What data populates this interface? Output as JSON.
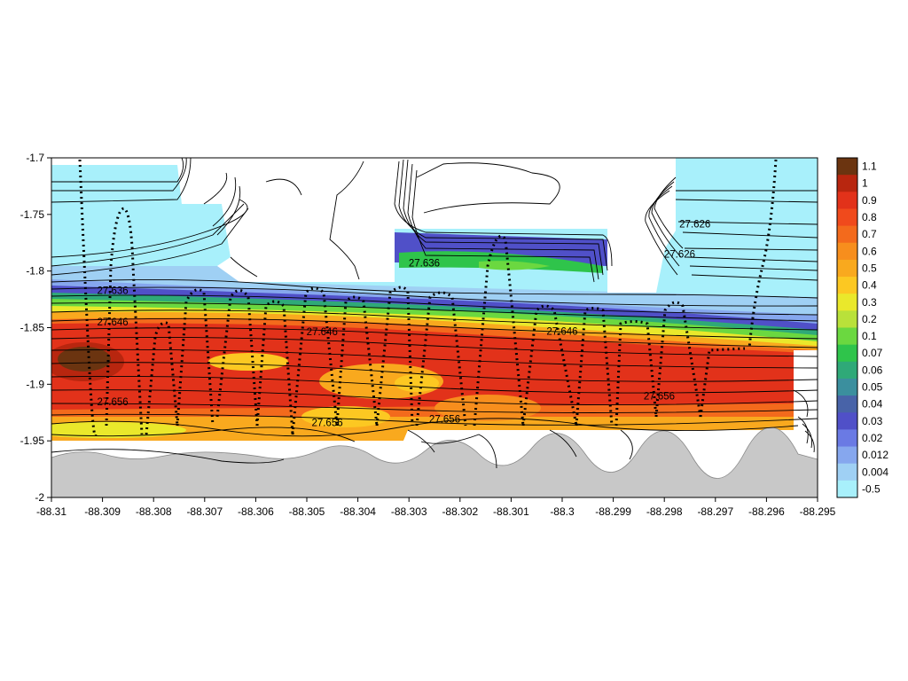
{
  "chart_data": {
    "type": "heatmap",
    "xlim": [
      -88.31,
      -88.295
    ],
    "ylim": [
      -2.0,
      -1.7
    ],
    "x_ticks": [
      "-88.31",
      "-88.309",
      "-88.308",
      "-88.307",
      "-88.306",
      "-88.305",
      "-88.304",
      "-88.303",
      "-88.302",
      "-88.301",
      "-88.3",
      "-88.299",
      "-88.298",
      "-88.297",
      "-88.296",
      "-88.295"
    ],
    "y_ticks": [
      "-1.7",
      "-1.75",
      "-1.8",
      "-1.85",
      "-1.9",
      "-1.95",
      "-2"
    ],
    "legend_position": "right",
    "colorbar": [
      {
        "label": "1.1",
        "color": "#6b3410"
      },
      {
        "label": "1",
        "color": "#b8260f"
      },
      {
        "label": "0.9",
        "color": "#e2321a"
      },
      {
        "label": "0.8",
        "color": "#f04a1c"
      },
      {
        "label": "0.7",
        "color": "#f36a1c"
      },
      {
        "label": "0.6",
        "color": "#f78e1d"
      },
      {
        "label": "0.5",
        "color": "#f9a91e"
      },
      {
        "label": "0.4",
        "color": "#fcc822"
      },
      {
        "label": "0.3",
        "color": "#eae82b"
      },
      {
        "label": "0.2",
        "color": "#b9e13a"
      },
      {
        "label": "0.1",
        "color": "#6bd840"
      },
      {
        "label": "0.07",
        "color": "#2fc44b"
      },
      {
        "label": "0.06",
        "color": "#2fa978"
      },
      {
        "label": "0.05",
        "color": "#3b8f9e"
      },
      {
        "label": "0.04",
        "color": "#4863a8"
      },
      {
        "label": "0.03",
        "color": "#5050c8"
      },
      {
        "label": "0.02",
        "color": "#6a7ae4"
      },
      {
        "label": "0.012",
        "color": "#86a7ee"
      },
      {
        "label": "0.004",
        "color": "#9fd0f4"
      },
      {
        "label": "-0.5",
        "color": "#a8f0fb"
      }
    ],
    "contour_labels": [
      {
        "text": "27.626",
        "x": -88.2974,
        "y": -1.7585
      },
      {
        "text": "27.626",
        "x": -88.2977,
        "y": -1.785
      },
      {
        "text": "27.636",
        "x": -88.3027,
        "y": -1.793
      },
      {
        "text": "27.636",
        "x": -88.3088,
        "y": -1.817
      },
      {
        "text": "27.646",
        "x": -88.3088,
        "y": -1.845
      },
      {
        "text": "27.646",
        "x": -88.3047,
        "y": -1.8535
      },
      {
        "text": "27.646",
        "x": -88.3,
        "y": -1.853
      },
      {
        "text": "27.656",
        "x": -88.3088,
        "y": -1.9155
      },
      {
        "text": "27.656",
        "x": -88.3046,
        "y": -1.934
      },
      {
        "text": "27.656",
        "x": -88.3023,
        "y": -1.9305
      },
      {
        "text": "27.656",
        "x": -88.2981,
        "y": -1.9105
      }
    ]
  }
}
